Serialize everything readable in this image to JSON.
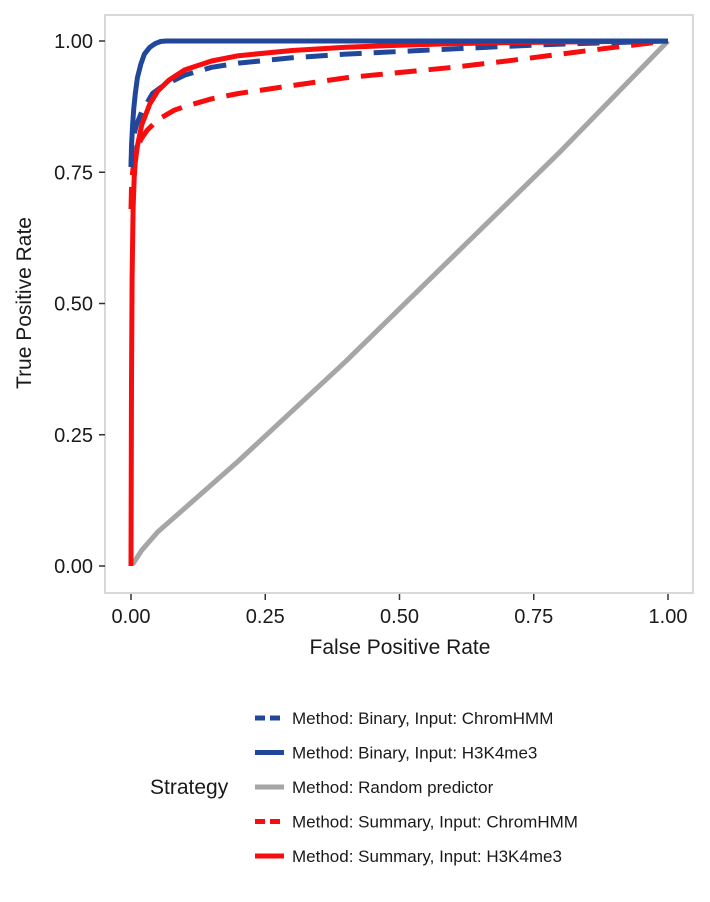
{
  "chart_data": {
    "type": "line",
    "title": "",
    "xlabel": "False Positive Rate",
    "ylabel": "True Positive Rate",
    "xlim": [
      0,
      1
    ],
    "ylim": [
      0,
      1
    ],
    "xticks": [
      "0.00",
      "0.25",
      "0.50",
      "0.75",
      "1.00"
    ],
    "yticks": [
      "0.00",
      "0.25",
      "0.50",
      "0.75",
      "1.00"
    ],
    "grid": false,
    "legend": {
      "title": "Strategy",
      "position": "bottom"
    },
    "series": [
      {
        "name": "Method: Binary, Input: ChromHMM",
        "color": "#21479b",
        "dash": "dashed",
        "x": [
          0,
          0.001,
          0.002,
          0.005,
          0.01,
          0.02,
          0.04,
          0.06,
          0.1,
          0.15,
          0.2,
          0.3,
          0.4,
          0.5,
          0.6,
          0.7,
          0.8,
          0.9,
          1.0
        ],
        "y": [
          0.76,
          0.78,
          0.8,
          0.82,
          0.84,
          0.865,
          0.9,
          0.915,
          0.935,
          0.95,
          0.958,
          0.968,
          0.975,
          0.98,
          0.985,
          0.99,
          0.994,
          0.997,
          1.0
        ]
      },
      {
        "name": "Method: Binary, Input: H3K4me3",
        "color": "#21479b",
        "dash": "solid",
        "x": [
          0,
          0.001,
          0.003,
          0.005,
          0.008,
          0.012,
          0.018,
          0.025,
          0.035,
          0.045,
          0.055,
          0.065,
          0.1,
          0.3,
          0.5,
          0.8,
          1.0
        ],
        "y": [
          0.76,
          0.8,
          0.84,
          0.87,
          0.9,
          0.93,
          0.955,
          0.975,
          0.988,
          0.995,
          0.999,
          1.0,
          1.0,
          1.0,
          1.0,
          1.0,
          1.0
        ]
      },
      {
        "name": "Method: Random predictor",
        "color": "#a6a6a6",
        "dash": "solid",
        "x": [
          0.003,
          0.02,
          0.05,
          0.1,
          0.2,
          0.3,
          0.4,
          0.5,
          0.6,
          0.7,
          0.8,
          0.9,
          1.0
        ],
        "y": [
          0.003,
          0.03,
          0.065,
          0.11,
          0.2,
          0.295,
          0.39,
          0.49,
          0.59,
          0.69,
          0.79,
          0.895,
          1.0
        ]
      },
      {
        "name": "Method: Summary, Input: ChromHMM",
        "color": "#f70d0d",
        "dash": "dashed",
        "x": [
          0,
          0.001,
          0.003,
          0.006,
          0.01,
          0.015,
          0.02,
          0.03,
          0.05,
          0.08,
          0.1,
          0.15,
          0.2,
          0.3,
          0.4,
          0.5,
          0.6,
          0.7,
          0.8,
          0.9,
          1.0
        ],
        "y": [
          0.68,
          0.72,
          0.75,
          0.775,
          0.79,
          0.805,
          0.815,
          0.83,
          0.85,
          0.868,
          0.875,
          0.89,
          0.9,
          0.915,
          0.93,
          0.94,
          0.95,
          0.962,
          0.975,
          0.988,
          1.0
        ]
      },
      {
        "name": "Method: Summary, Input: H3K4me3",
        "color": "#f70d0d",
        "dash": "solid",
        "x": [
          0,
          0.001,
          0.002,
          0.004,
          0.006,
          0.008,
          0.012,
          0.02,
          0.035,
          0.05,
          0.07,
          0.1,
          0.15,
          0.2,
          0.3,
          0.4,
          0.5,
          0.6,
          0.7,
          0.8,
          0.9,
          1.0
        ],
        "y": [
          0.0,
          0.35,
          0.55,
          0.68,
          0.74,
          0.77,
          0.8,
          0.84,
          0.88,
          0.905,
          0.925,
          0.945,
          0.962,
          0.972,
          0.982,
          0.988,
          0.992,
          0.995,
          0.997,
          0.998,
          0.999,
          1.0
        ]
      }
    ]
  }
}
